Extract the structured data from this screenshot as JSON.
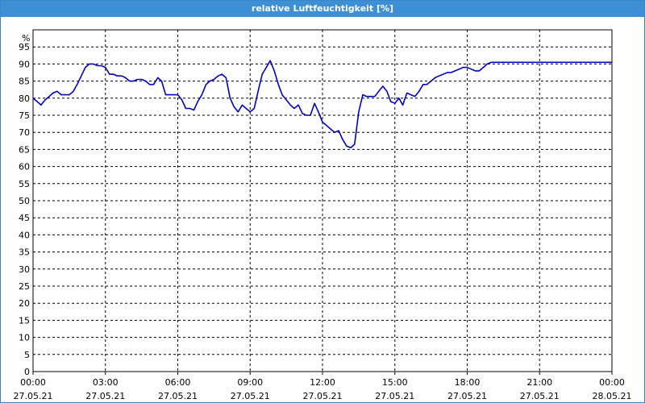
{
  "window": {
    "title": "relative Luftfeuchtigkeit [%]"
  },
  "colors": {
    "titlebar": "#3d8fd6",
    "line": "#0000c0",
    "grid": "#000000"
  },
  "chart_data": {
    "type": "line",
    "title": "relative Luftfeuchtigkeit [%]",
    "ylabel": "%",
    "ylim": [
      0,
      100
    ],
    "yticks": [
      0,
      5,
      10,
      15,
      20,
      25,
      30,
      35,
      40,
      45,
      50,
      55,
      60,
      65,
      70,
      75,
      80,
      85,
      90,
      95
    ],
    "xlim_hours": [
      0,
      24
    ],
    "xticks": [
      {
        "time": "00:00",
        "date": "27.05.21"
      },
      {
        "time": "03:00",
        "date": "27.05.21"
      },
      {
        "time": "06:00",
        "date": "27.05.21"
      },
      {
        "time": "09:00",
        "date": "27.05.21"
      },
      {
        "time": "12:00",
        "date": "27.05.21"
      },
      {
        "time": "15:00",
        "date": "27.05.21"
      },
      {
        "time": "18:00",
        "date": "27.05.21"
      },
      {
        "time": "21:00",
        "date": "27.05.21"
      },
      {
        "time": "00:00",
        "date": "28.05.21"
      }
    ],
    "grid": true,
    "series": [
      {
        "x": [
          0.0,
          0.17,
          0.33,
          0.5,
          0.67,
          0.83,
          1.0,
          1.17,
          1.33,
          1.5,
          1.67,
          1.83,
          2.0,
          2.17,
          2.33,
          2.5,
          2.67,
          2.83,
          3.0,
          3.17,
          3.33,
          3.5,
          3.67,
          3.83,
          4.0,
          4.17,
          4.33,
          4.5,
          4.67,
          4.83,
          5.0,
          5.17,
          5.33,
          5.5,
          5.67,
          5.83,
          6.0,
          6.17,
          6.33,
          6.5,
          6.67,
          6.83,
          7.0,
          7.17,
          7.33,
          7.5,
          7.67,
          7.83,
          8.0,
          8.17,
          8.33,
          8.5,
          8.67,
          8.83,
          9.0,
          9.17,
          9.33,
          9.5,
          9.67,
          9.83,
          10.0,
          10.17,
          10.33,
          10.5,
          10.67,
          10.83,
          11.0,
          11.17,
          11.33,
          11.5,
          11.67,
          11.83,
          12.0,
          12.17,
          12.33,
          12.5,
          12.67,
          12.83,
          13.0,
          13.17,
          13.33,
          13.5,
          13.67,
          13.83,
          14.0,
          14.17,
          14.33,
          14.5,
          14.67,
          14.83,
          15.0,
          15.17,
          15.33,
          15.5,
          15.67,
          15.83,
          16.0,
          16.17,
          16.33,
          16.5,
          16.67,
          16.83,
          17.0,
          17.17,
          17.33,
          17.5,
          17.67,
          17.83,
          18.0,
          18.17,
          18.33,
          18.5,
          18.67,
          18.83,
          19.0,
          19.17,
          19.33,
          19.5,
          19.67,
          19.83,
          20.0,
          20.17,
          20.33,
          20.5,
          20.67,
          20.83,
          21.0,
          21.17,
          21.33,
          21.5,
          21.67,
          21.83,
          22.0,
          22.17,
          22.33,
          22.5,
          22.67,
          22.83,
          23.0,
          23.17,
          23.33,
          23.5,
          23.67,
          23.83,
          24.0
        ],
        "values": [
          80.0,
          79.0,
          78.0,
          79.5,
          80.5,
          81.5,
          82.0,
          81.0,
          81.0,
          81.0,
          82.0,
          84.0,
          86.5,
          89.0,
          90.0,
          90.0,
          89.5,
          89.5,
          89.0,
          87.0,
          87.0,
          86.5,
          86.5,
          86.0,
          85.0,
          85.0,
          85.5,
          85.5,
          85.0,
          84.0,
          84.0,
          86.0,
          85.0,
          81.0,
          81.0,
          81.0,
          81.0,
          79.5,
          77.0,
          77.0,
          76.5,
          79.0,
          81.0,
          84.0,
          85.0,
          85.5,
          86.5,
          87.0,
          86.0,
          80.0,
          77.5,
          76.0,
          78.0,
          77.0,
          76.0,
          77.0,
          82.0,
          87.0,
          89.0,
          91.0,
          88.0,
          84.0,
          81.0,
          79.5,
          78.0,
          77.0,
          78.0,
          75.5,
          75.0,
          75.0,
          78.5,
          76.0,
          73.0,
          72.0,
          71.0,
          70.0,
          70.5,
          68.0,
          66.0,
          65.5,
          66.5,
          76.0,
          81.0,
          80.5,
          80.5,
          80.5,
          82.0,
          83.5,
          82.0,
          79.0,
          78.5,
          80.0,
          78.0,
          81.5,
          81.0,
          80.5,
          82.0,
          84.0,
          84.0,
          85.0,
          86.0,
          86.5,
          87.0,
          87.5,
          87.5,
          88.0,
          88.5,
          89.0,
          89.0,
          88.5,
          88.0,
          88.0,
          89.0,
          90.0,
          90.5,
          90.5,
          90.5,
          90.5,
          90.5,
          90.5,
          90.5,
          90.5,
          90.5,
          90.5,
          90.5,
          90.5,
          90.5,
          90.5,
          90.5,
          90.5,
          90.5,
          90.5,
          90.5,
          90.5,
          90.5,
          90.5,
          90.5,
          90.5,
          90.5,
          90.5,
          90.5,
          90.5,
          90.5,
          90.5,
          90.5
        ]
      }
    ]
  }
}
